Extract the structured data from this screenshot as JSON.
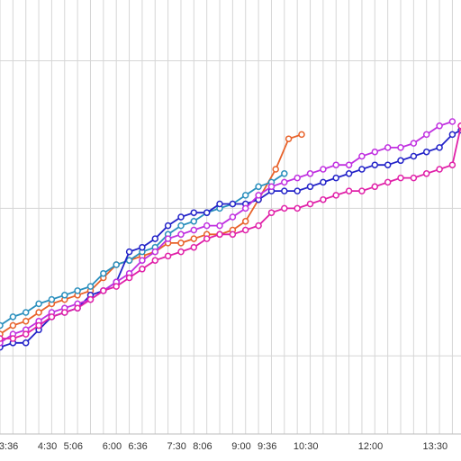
{
  "chart_data": {
    "type": "line",
    "grid": true,
    "x_tick_labels": [
      {
        "label": "3:36",
        "x": 3.6
      },
      {
        "label": "4:30",
        "x": 4.5
      },
      {
        "label": "5:06",
        "x": 5.1
      },
      {
        "label": "6:00",
        "x": 6.0
      },
      {
        "label": "6:36",
        "x": 6.6
      },
      {
        "label": "7:30",
        "x": 7.5
      },
      {
        "label": "8:06",
        "x": 8.1
      },
      {
        "label": "9:00",
        "x": 9.0
      },
      {
        "label": "9:36",
        "x": 9.6
      },
      {
        "label": "10:30",
        "x": 10.5
      },
      {
        "label": "12:00",
        "x": 12.0
      },
      {
        "label": "13:30",
        "x": 13.5
      }
    ],
    "xlim": [
      3.4,
      14.1
    ],
    "ylim": [
      0,
      100
    ],
    "y_gridlines": [
      18,
      52,
      86
    ],
    "series": [
      {
        "color": "#e8622a",
        "x": [
          3.4,
          3.7,
          4.0,
          4.3,
          4.6,
          4.9,
          5.2,
          5.5,
          5.8,
          6.1,
          6.4,
          6.7,
          7.0,
          7.3,
          7.6,
          7.9,
          8.2,
          8.5,
          8.8,
          9.1,
          9.4,
          9.8,
          10.1,
          10.4
        ],
        "y": [
          23,
          25,
          26,
          28,
          30,
          31,
          32,
          33,
          36,
          39,
          40,
          41,
          42,
          44,
          44,
          45,
          46,
          46,
          47,
          49,
          54,
          61,
          68,
          69
        ]
      },
      {
        "color": "#2a8fbd",
        "x": [
          3.4,
          3.7,
          4.0,
          4.3,
          4.6,
          4.9,
          5.2,
          5.5,
          5.8,
          6.1,
          6.4,
          6.7,
          7.0,
          7.3,
          7.6,
          7.9,
          8.2,
          8.5,
          8.8,
          9.1,
          9.4,
          9.7,
          10.0
        ],
        "y": [
          25,
          27,
          28,
          30,
          31,
          32,
          33,
          34,
          37,
          39,
          40,
          42,
          43,
          46,
          48,
          49,
          51,
          52,
          53,
          55,
          57,
          58,
          60
        ]
      },
      {
        "color": "#2323c8",
        "x": [
          3.4,
          3.7,
          4.0,
          4.3,
          4.6,
          4.9,
          5.2,
          5.5,
          5.8,
          6.1,
          6.4,
          6.7,
          7.0,
          7.3,
          7.6,
          7.9,
          8.2,
          8.5,
          8.8,
          9.1,
          9.4,
          9.7,
          10.0,
          10.3,
          10.6,
          10.9,
          11.2,
          11.5,
          11.8,
          12.1,
          12.4,
          12.7,
          13.0,
          13.3,
          13.6,
          13.9,
          14.1
        ],
        "y": [
          20,
          21,
          21,
          24,
          27,
          28,
          29,
          32,
          33,
          35,
          42,
          43,
          45,
          48,
          50,
          51,
          51,
          53,
          53,
          53,
          54,
          56,
          56,
          56,
          57,
          58,
          59,
          60,
          61,
          62,
          62,
          63,
          64,
          65,
          66,
          69,
          70
        ]
      },
      {
        "color": "#c030e0",
        "x": [
          3.4,
          3.7,
          4.0,
          4.3,
          4.6,
          4.9,
          5.2,
          5.5,
          5.8,
          6.1,
          6.4,
          6.7,
          7.0,
          7.3,
          7.6,
          7.9,
          8.2,
          8.5,
          8.8,
          9.1,
          9.4,
          9.7,
          10.0,
          10.3,
          10.6,
          10.9,
          11.2,
          11.5,
          11.8,
          12.1,
          12.4,
          12.7,
          13.0,
          13.3,
          13.6,
          13.9
        ],
        "y": [
          21,
          23,
          24,
          26,
          28,
          29,
          30,
          31,
          33,
          35,
          37,
          40,
          42,
          45,
          46,
          47,
          48,
          48,
          50,
          52,
          55,
          57,
          58,
          59,
          60,
          61,
          62,
          62,
          64,
          65,
          66,
          66,
          67,
          69,
          71,
          72
        ]
      },
      {
        "color": "#e020a8",
        "x": [
          3.4,
          3.7,
          4.0,
          4.3,
          4.6,
          4.9,
          5.2,
          5.5,
          5.8,
          6.1,
          6.4,
          6.7,
          7.0,
          7.3,
          7.6,
          7.9,
          8.2,
          8.5,
          8.8,
          9.1,
          9.4,
          9.7,
          10.0,
          10.3,
          10.6,
          10.9,
          11.2,
          11.5,
          11.8,
          12.1,
          12.4,
          12.7,
          13.0,
          13.3,
          13.6,
          13.9,
          14.1
        ],
        "y": [
          22,
          22,
          23,
          25,
          27,
          28,
          29,
          31,
          33,
          34,
          36,
          38,
          40,
          41,
          42,
          43,
          45,
          46,
          46,
          47,
          48,
          51,
          52,
          52,
          53,
          54,
          55,
          56,
          56,
          57,
          58,
          59,
          59,
          60,
          61,
          62,
          71
        ]
      }
    ]
  }
}
